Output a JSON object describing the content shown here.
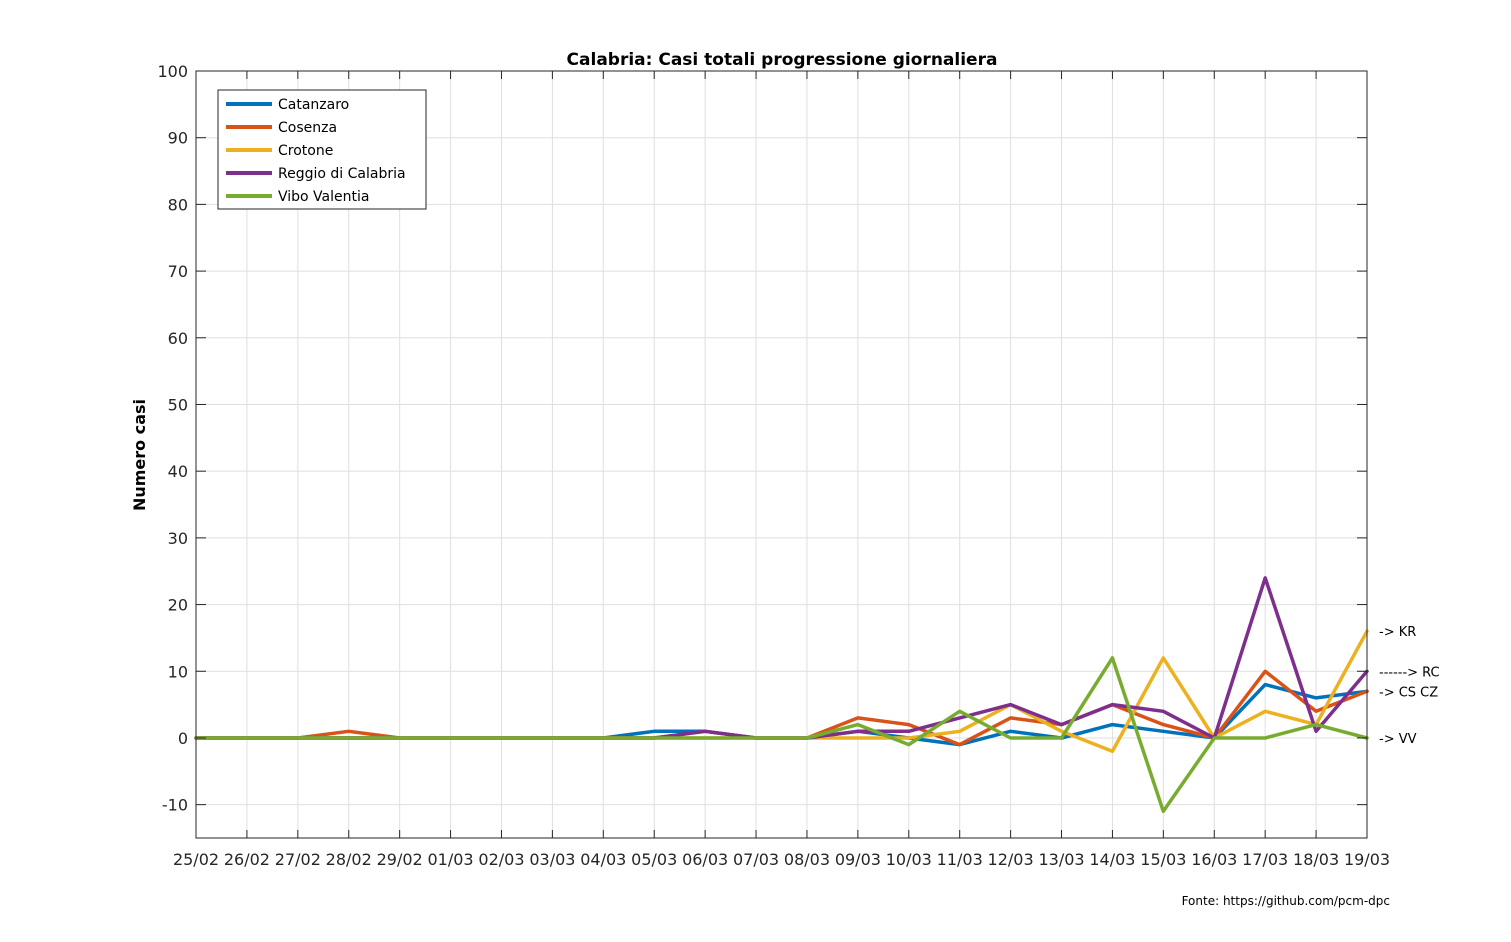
{
  "chart_data": {
    "type": "line",
    "title": "Calabria: Casi totali progressione giornaliera",
    "xlabel": "",
    "ylabel": "Numero casi",
    "ylim": [
      -15,
      100
    ],
    "yticks": [
      -10,
      0,
      10,
      20,
      30,
      40,
      50,
      60,
      70,
      80,
      90,
      100
    ],
    "grid": true,
    "legend_position": "top-left",
    "categories": [
      "25/02",
      "26/02",
      "27/02",
      "28/02",
      "29/02",
      "01/03",
      "02/03",
      "03/03",
      "04/03",
      "05/03",
      "06/03",
      "07/03",
      "08/03",
      "09/03",
      "10/03",
      "11/03",
      "12/03",
      "13/03",
      "14/03",
      "15/03",
      "16/03",
      "17/03",
      "18/03",
      "19/03"
    ],
    "series": [
      {
        "name": "Catanzaro",
        "color": "#0072BD",
        "values": [
          0,
          0,
          0,
          0,
          0,
          0,
          0,
          0,
          0,
          1,
          1,
          0,
          0,
          1,
          0,
          -1,
          1,
          0,
          2,
          1,
          0,
          8,
          6,
          7
        ]
      },
      {
        "name": "Cosenza",
        "color": "#D95319",
        "values": [
          0,
          0,
          0,
          1,
          0,
          0,
          0,
          0,
          0,
          0,
          1,
          0,
          0,
          3,
          2,
          -1,
          3,
          2,
          5,
          2,
          0,
          10,
          4,
          7
        ]
      },
      {
        "name": "Crotone",
        "color": "#EDB120",
        "values": [
          0,
          0,
          0,
          0,
          0,
          0,
          0,
          0,
          0,
          0,
          0,
          0,
          0,
          0,
          0,
          1,
          5,
          1,
          -2,
          12,
          0,
          4,
          2,
          16
        ]
      },
      {
        "name": "Reggio di Calabria",
        "color": "#7E2F8E",
        "values": [
          0,
          0,
          0,
          0,
          0,
          0,
          0,
          0,
          0,
          0,
          1,
          0,
          0,
          1,
          1,
          3,
          5,
          2,
          5,
          4,
          0,
          24,
          1,
          10
        ]
      },
      {
        "name": "Vibo Valentia",
        "color": "#77AC30",
        "values": [
          0,
          0,
          0,
          0,
          0,
          0,
          0,
          0,
          0,
          0,
          0,
          0,
          0,
          2,
          -1,
          4,
          0,
          0,
          12,
          -11,
          0,
          0,
          2,
          0
        ]
      }
    ],
    "annotations": [
      {
        "text": "-> KR",
        "y": 16
      },
      {
        "text": "------> RC",
        "y": 10
      },
      {
        "text": "-> CS CZ",
        "y": 7
      },
      {
        "text": "-> VV",
        "y": 0
      }
    ]
  },
  "source_note": "Fonte: https://github.com/pcm-dpc"
}
